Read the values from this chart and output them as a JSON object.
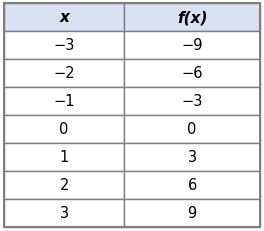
{
  "headers": [
    "x",
    "f(x)"
  ],
  "rows": [
    [
      "−3",
      "−9"
    ],
    [
      "−2",
      "−6"
    ],
    [
      "−1",
      "−3"
    ],
    [
      "0",
      "0"
    ],
    [
      "1",
      "3"
    ],
    [
      "2",
      "6"
    ],
    [
      "3",
      "9"
    ]
  ],
  "header_bg": "#d9e1f2",
  "row_bg": "#ffffff",
  "border_color": "#7f7f7f",
  "header_text_color": "#000000",
  "row_text_color": "#000000",
  "font_size": 10.5,
  "header_font_size": 11,
  "fig_bg": "#ffffff",
  "fig_width": 2.64,
  "fig_height": 2.32,
  "dpi": 100,
  "col_split": 0.47,
  "n_header_rows": 1,
  "n_data_rows": 7
}
